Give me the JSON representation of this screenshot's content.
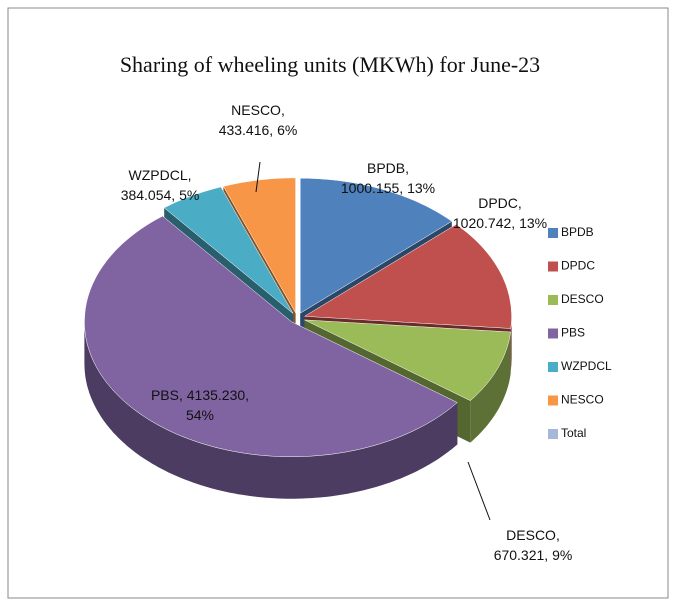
{
  "chart_data": {
    "type": "pie3d",
    "title": "Sharing of wheeling units (MKWh) for June-23",
    "categories": [
      "BPDB",
      "DPDC",
      "DESCO",
      "PBS",
      "WZPDCL",
      "NESCO",
      "Total"
    ],
    "values": [
      1000.155,
      1020.742,
      670.321,
      4135.23,
      384.054,
      433.416,
      null
    ],
    "value_labels": [
      "BPDB, 1000.155, 13%",
      "DPDC, 1020.742, 13%",
      "DESCO, 670.321, 9%",
      "PBS, 4135.230, 54%",
      "WZPDCL, 384.054, 5%",
      "NESCO, 433.416, 6%",
      null
    ],
    "colors": [
      "#4f81bd",
      "#c0504d",
      "#9bbb59",
      "#8064a2",
      "#4bacc6",
      "#f79646",
      "#a5b8d9"
    ],
    "legend": "right"
  }
}
